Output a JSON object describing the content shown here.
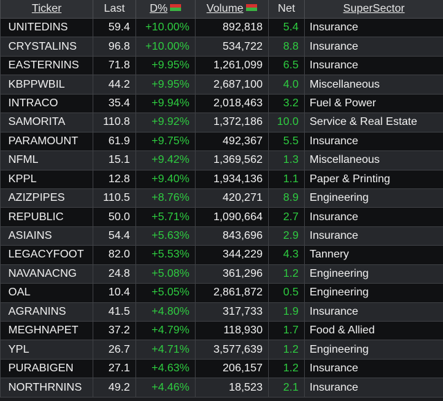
{
  "headers": {
    "ticker": "Ticker",
    "last": "Last",
    "change": "D%",
    "volume": "Volume",
    "net": "Net",
    "sector": "SuperSector"
  },
  "colors": {
    "positive": "#2ecc40",
    "flag_top": "#d4322f",
    "flag_bottom": "#3cb043"
  },
  "rows": [
    {
      "ticker": "UNITEDINS",
      "last": "59.4",
      "change": "+10.00%",
      "volume": "892,818",
      "net": "5.4",
      "sector": "Insurance"
    },
    {
      "ticker": "CRYSTALINS",
      "last": "96.8",
      "change": "+10.00%",
      "volume": "534,722",
      "net": "8.8",
      "sector": "Insurance"
    },
    {
      "ticker": "EASTERNINS",
      "last": "71.8",
      "change": "+9.95%",
      "volume": "1,261,099",
      "net": "6.5",
      "sector": "Insurance"
    },
    {
      "ticker": "KBPPWBIL",
      "last": "44.2",
      "change": "+9.95%",
      "volume": "2,687,100",
      "net": "4.0",
      "sector": "Miscellaneous"
    },
    {
      "ticker": "INTRACO",
      "last": "35.4",
      "change": "+9.94%",
      "volume": "2,018,463",
      "net": "3.2",
      "sector": "Fuel & Power"
    },
    {
      "ticker": "SAMORITA",
      "last": "110.8",
      "change": "+9.92%",
      "volume": "1,372,186",
      "net": "10.0",
      "sector": "Service & Real Estate"
    },
    {
      "ticker": "PARAMOUNT",
      "last": "61.9",
      "change": "+9.75%",
      "volume": "492,367",
      "net": "5.5",
      "sector": "Insurance"
    },
    {
      "ticker": "NFML",
      "last": "15.1",
      "change": "+9.42%",
      "volume": "1,369,562",
      "net": "1.3",
      "sector": "Miscellaneous"
    },
    {
      "ticker": "KPPL",
      "last": "12.8",
      "change": "+9.40%",
      "volume": "1,934,136",
      "net": "1.1",
      "sector": "Paper & Printing"
    },
    {
      "ticker": "AZIZPIPES",
      "last": "110.5",
      "change": "+8.76%",
      "volume": "420,271",
      "net": "8.9",
      "sector": "Engineering"
    },
    {
      "ticker": "REPUBLIC",
      "last": "50.0",
      "change": "+5.71%",
      "volume": "1,090,664",
      "net": "2.7",
      "sector": "Insurance"
    },
    {
      "ticker": "ASIAINS",
      "last": "54.4",
      "change": "+5.63%",
      "volume": "843,696",
      "net": "2.9",
      "sector": "Insurance"
    },
    {
      "ticker": "LEGACYFOOT",
      "last": "82.0",
      "change": "+5.53%",
      "volume": "344,229",
      "net": "4.3",
      "sector": "Tannery"
    },
    {
      "ticker": "NAVANACNG",
      "last": "24.8",
      "change": "+5.08%",
      "volume": "361,296",
      "net": "1.2",
      "sector": "Engineering"
    },
    {
      "ticker": "OAL",
      "last": "10.4",
      "change": "+5.05%",
      "volume": "2,861,872",
      "net": "0.5",
      "sector": "Engineering"
    },
    {
      "ticker": "AGRANINS",
      "last": "41.5",
      "change": "+4.80%",
      "volume": "317,733",
      "net": "1.9",
      "sector": "Insurance"
    },
    {
      "ticker": "MEGHNAPET",
      "last": "37.2",
      "change": "+4.79%",
      "volume": "118,930",
      "net": "1.7",
      "sector": "Food & Allied"
    },
    {
      "ticker": "YPL",
      "last": "26.7",
      "change": "+4.71%",
      "volume": "3,577,639",
      "net": "1.2",
      "sector": "Engineering"
    },
    {
      "ticker": "PURABIGEN",
      "last": "27.1",
      "change": "+4.63%",
      "volume": "206,157",
      "net": "1.2",
      "sector": "Insurance"
    },
    {
      "ticker": "NORTHRNINS",
      "last": "49.2",
      "change": "+4.46%",
      "volume": "18,523",
      "net": "2.1",
      "sector": "Insurance"
    }
  ]
}
